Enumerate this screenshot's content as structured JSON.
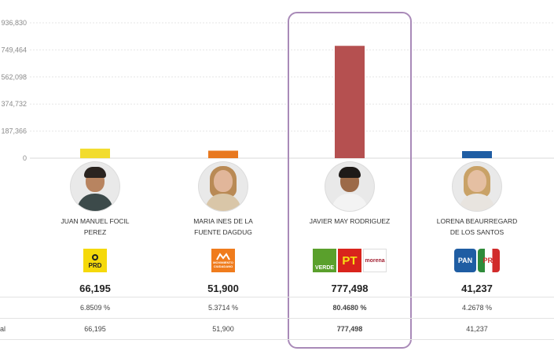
{
  "chart_data": {
    "type": "bar",
    "yticks": [
      "0",
      "187,366",
      "374,732",
      "562,098",
      "749,464",
      "936,830"
    ],
    "ylim": [
      0,
      936830
    ],
    "grid": true,
    "categories": [
      "JUAN MANUEL FOCIL PEREZ",
      "MARIA INES DE LA FUENTE DAGDUG",
      "JAVIER MAY RODRIGUEZ",
      "LORENA BEAURREGARD DE LOS SANTOS"
    ],
    "values": [
      66195,
      51900,
      777498,
      41237
    ],
    "colors": [
      "#f2dc2e",
      "#e8781f",
      "#b55050",
      "#1f5da3"
    ]
  },
  "candidates": [
    {
      "name_line1": "JUAN MANUEL FOCIL",
      "name_line2": "PEREZ",
      "votes": "66,195",
      "percent": "6.8509 %",
      "total": "66,195",
      "parties": [
        {
          "label": "PRD",
          "icon": "prd-logo-icon"
        }
      ]
    },
    {
      "name_line1": "MARIA INES DE LA",
      "name_line2": "FUENTE DAGDUG",
      "votes": "51,900",
      "percent": "5.3714 %",
      "total": "51,900",
      "parties": [
        {
          "label": "MOVIMIENTO CIUDADANO",
          "icon": "mc-logo-icon"
        }
      ]
    },
    {
      "name_line1": "JAVIER MAY RODRIGUEZ",
      "name_line2": "",
      "votes": "777,498",
      "percent": "80.4680 %",
      "total": "777,498",
      "parties": [
        {
          "label": "VERDE",
          "icon": "verde-logo-icon"
        },
        {
          "label": "PT",
          "icon": "pt-logo-icon"
        },
        {
          "label": "morena",
          "icon": "morena-logo-icon"
        }
      ]
    },
    {
      "name_line1": "LORENA BEAURREGARD",
      "name_line2": "DE LOS SANTOS",
      "votes": "41,237",
      "percent": "4.2678 %",
      "total": "41,237",
      "parties": [
        {
          "label": "PAN",
          "icon": "pan-logo-icon"
        },
        {
          "label": "PRI",
          "icon": "pri-logo-icon"
        }
      ]
    }
  ],
  "rows": {
    "total_label": "al"
  }
}
